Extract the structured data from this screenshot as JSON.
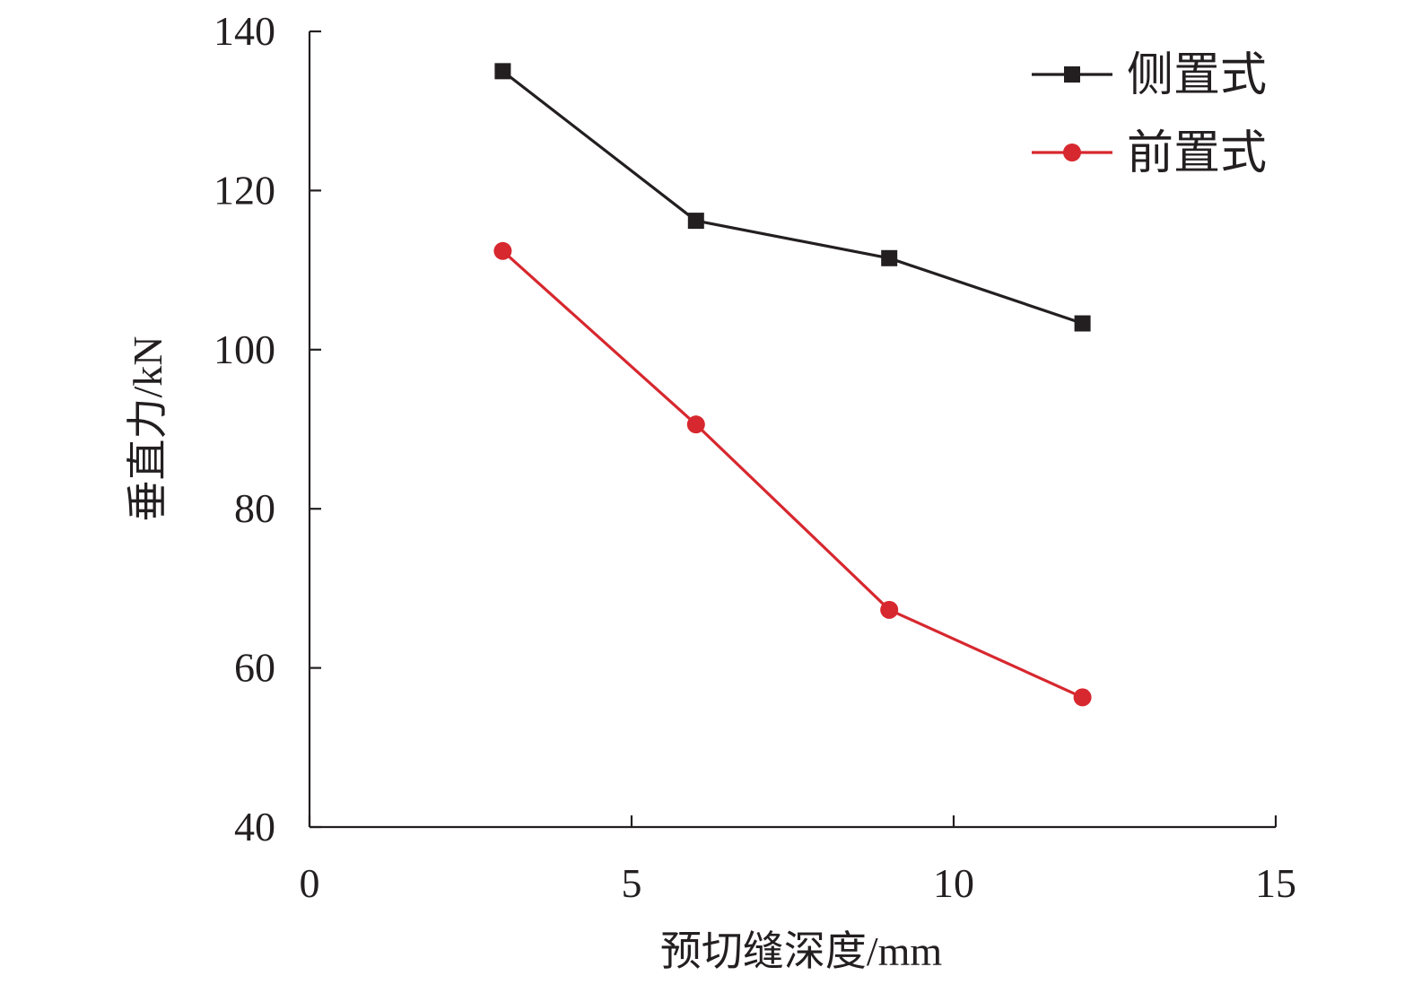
{
  "chart_data": {
    "type": "line",
    "title": "",
    "xlabel": "预切缝深度/mm",
    "ylabel": "垂直力/kN",
    "xlim": [
      0,
      15
    ],
    "ylim": [
      40,
      140
    ],
    "x_ticks": [
      0,
      5,
      10,
      15
    ],
    "y_ticks": [
      40,
      60,
      80,
      100,
      120,
      140
    ],
    "grid": false,
    "legend_position": "top-right",
    "series": [
      {
        "name": "侧置式",
        "marker": "square",
        "color": "#231f20",
        "x": [
          3,
          6,
          9,
          12
        ],
        "y": [
          135,
          116.2,
          111.5,
          103.3
        ]
      },
      {
        "name": "前置式",
        "marker": "circle",
        "color": "#d7282f",
        "x": [
          3,
          6,
          9,
          12
        ],
        "y": [
          112.4,
          90.6,
          67.3,
          56.3
        ]
      }
    ]
  }
}
